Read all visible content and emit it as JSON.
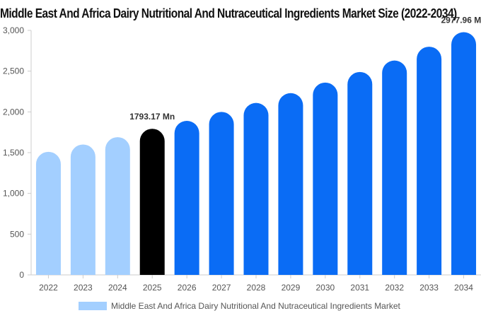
{
  "chart_data": {
    "type": "bar",
    "title": "Middle East And Africa Dairy Nutritional And Nutraceutical Ingredients Market Size (2022-2034)",
    "xlabel": "",
    "ylabel": "",
    "categories": [
      "2022",
      "2023",
      "2024",
      "2025",
      "2026",
      "2027",
      "2028",
      "2029",
      "2030",
      "2031",
      "2032",
      "2033",
      "2034"
    ],
    "series": [
      {
        "name": "Middle East And Africa Dairy Nutritional And Nutraceutical Ingredients Market",
        "values": [
          1510,
          1600,
          1690,
          1793.17,
          1890,
          2000,
          2110,
          2230,
          2360,
          2490,
          2630,
          2800,
          2977.96
        ]
      }
    ],
    "ylim": [
      0,
      3000
    ],
    "yticks": [
      0,
      500,
      1000,
      1500,
      2000,
      2500,
      3000
    ],
    "ytick_labels": [
      "0",
      "500",
      "1,000",
      "1,500",
      "2,000",
      "2,500",
      "3,000"
    ],
    "annotations": [
      {
        "category": "2025",
        "text": "1793.17 Mn"
      },
      {
        "category": "2034",
        "text": "2977.96 Mn"
      }
    ],
    "highlight_category": "2025",
    "colors": {
      "historical": "#a3cfff",
      "current": "#000000",
      "forecast": "#0a6cf5",
      "axis": "#cccccc",
      "tick_text": "#555555",
      "annotation_text": "#333333"
    },
    "grid": false,
    "legend_position": "bottom"
  },
  "legend": {
    "label": "Middle East And Africa Dairy Nutritional And Nutraceutical Ingredients Market"
  }
}
